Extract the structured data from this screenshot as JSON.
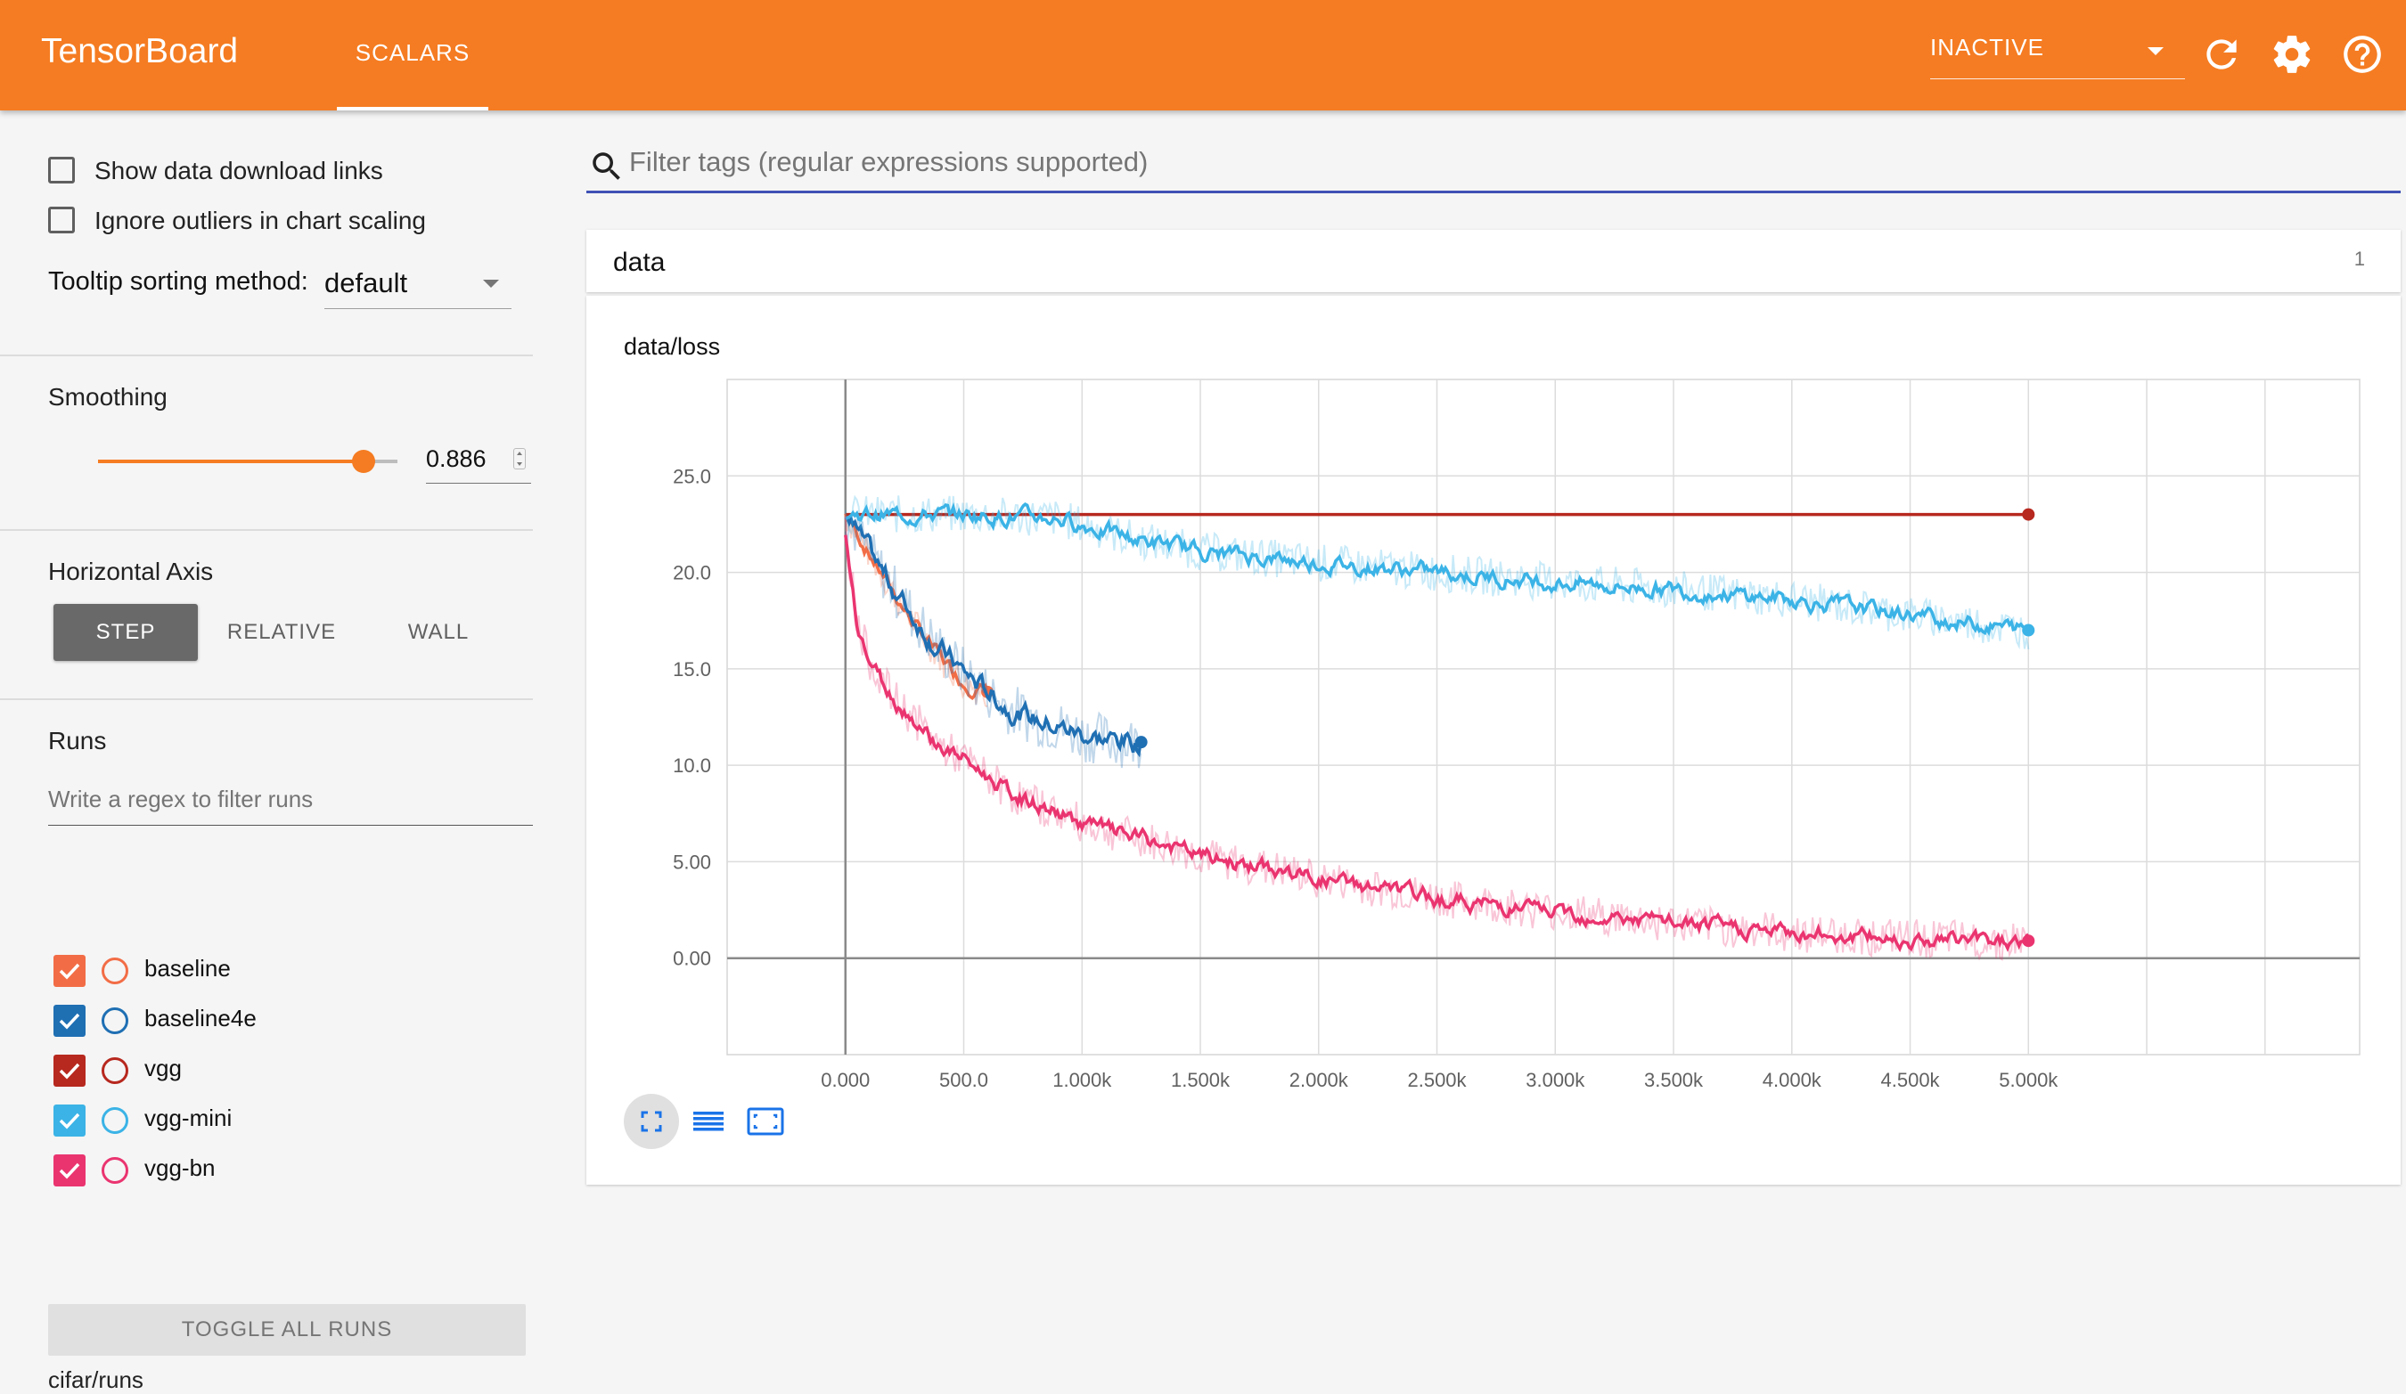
{
  "header": {
    "title": "TensorBoard",
    "tabs": [
      {
        "label": "SCALARS",
        "active": true
      }
    ],
    "status_select": "INACTIVE",
    "icons": [
      "refresh-icon",
      "settings-icon",
      "help-icon"
    ],
    "brand_color": "#f57c22"
  },
  "sidebar": {
    "show_download_links": {
      "label": "Show data download links",
      "checked": false
    },
    "ignore_outliers": {
      "label": "Ignore outliers in chart scaling",
      "checked": false
    },
    "tooltip_sorting": {
      "label": "Tooltip sorting method:",
      "value": "default"
    },
    "smoothing": {
      "title": "Smoothing",
      "value": "0.886",
      "fraction": 0.886
    },
    "horizontal_axis": {
      "title": "Horizontal Axis",
      "options": [
        "STEP",
        "RELATIVE",
        "WALL"
      ],
      "selected": "STEP"
    },
    "runs": {
      "title": "Runs",
      "filter_placeholder": "Write a regex to filter runs",
      "items": [
        {
          "name": "baseline",
          "color": "#f26d46",
          "checked": true
        },
        {
          "name": "baseline4e",
          "color": "#1f6fb3",
          "checked": true
        },
        {
          "name": "vgg",
          "color": "#b7281e",
          "checked": true
        },
        {
          "name": "vgg-mini",
          "color": "#3bb3e6",
          "checked": true
        },
        {
          "name": "vgg-bn",
          "color": "#ea3470",
          "checked": true
        }
      ],
      "toggle_label": "TOGGLE ALL RUNS",
      "logdir": "cifar/runs"
    }
  },
  "main": {
    "filter_placeholder": "Filter tags (regular expressions supported)",
    "category": {
      "name": "data",
      "count": "1"
    },
    "chart_buttons": [
      "fullscreen-icon",
      "list-icon",
      "fit-domain-icon"
    ]
  },
  "chart_data": {
    "type": "line",
    "title": "data/loss",
    "xlabel": "",
    "ylabel": "",
    "xlim": [
      -500,
      6400
    ],
    "ylim": [
      -5,
      30
    ],
    "x_ticks": [
      "0.000",
      "500.0",
      "1.000k",
      "1.500k",
      "2.000k",
      "2.500k",
      "3.000k",
      "3.500k",
      "4.000k",
      "4.500k",
      "5.000k"
    ],
    "x_tick_values": [
      0,
      500,
      1000,
      1500,
      2000,
      2500,
      3000,
      3500,
      4000,
      4500,
      5000
    ],
    "y_ticks": [
      "0.00",
      "5.00",
      "10.0",
      "15.0",
      "20.0",
      "25.0"
    ],
    "y_tick_values": [
      0,
      5,
      10,
      15,
      20,
      25
    ],
    "grid": true,
    "series": [
      {
        "name": "baseline",
        "color": "#f26d46",
        "x": [
          0,
          100,
          200,
          300,
          400,
          500,
          600
        ],
        "y": [
          23.0,
          21.0,
          19.0,
          17.2,
          15.6,
          14.3,
          13.8
        ]
      },
      {
        "name": "baseline4e",
        "color": "#1f6fb3",
        "x": [
          0,
          100,
          200,
          300,
          400,
          500,
          600,
          700,
          800,
          900,
          1000,
          1100,
          1250
        ],
        "y": [
          23.0,
          21.0,
          19.2,
          17.5,
          16.0,
          14.8,
          13.8,
          12.9,
          12.4,
          12.0,
          11.6,
          11.3,
          11.2
        ]
      },
      {
        "name": "vgg",
        "color": "#b7281e",
        "x": [
          0,
          1000,
          2000,
          3000,
          4000,
          5000
        ],
        "y": [
          23.0,
          23.0,
          23.0,
          23.0,
          23.0,
          23.0
        ]
      },
      {
        "name": "vgg-mini",
        "color": "#3bb3e6",
        "x": [
          0,
          500,
          900,
          1200,
          1500,
          2000,
          2500,
          3000,
          3500,
          4000,
          4500,
          5000
        ],
        "y": [
          23.0,
          23.0,
          22.8,
          21.8,
          21.1,
          20.5,
          20.0,
          19.5,
          19.1,
          18.6,
          17.8,
          17.0
        ]
      },
      {
        "name": "vgg-bn",
        "color": "#ea3470",
        "x": [
          0,
          50,
          100,
          200,
          300,
          400,
          500,
          700,
          1000,
          1500,
          2000,
          2500,
          3000,
          3500,
          4000,
          4500,
          5000
        ],
        "y": [
          22.0,
          17.5,
          15.5,
          13.5,
          12.3,
          11.0,
          10.3,
          8.5,
          7.0,
          5.3,
          4.1,
          3.1,
          2.4,
          1.8,
          1.3,
          1.0,
          0.9
        ]
      }
    ]
  }
}
